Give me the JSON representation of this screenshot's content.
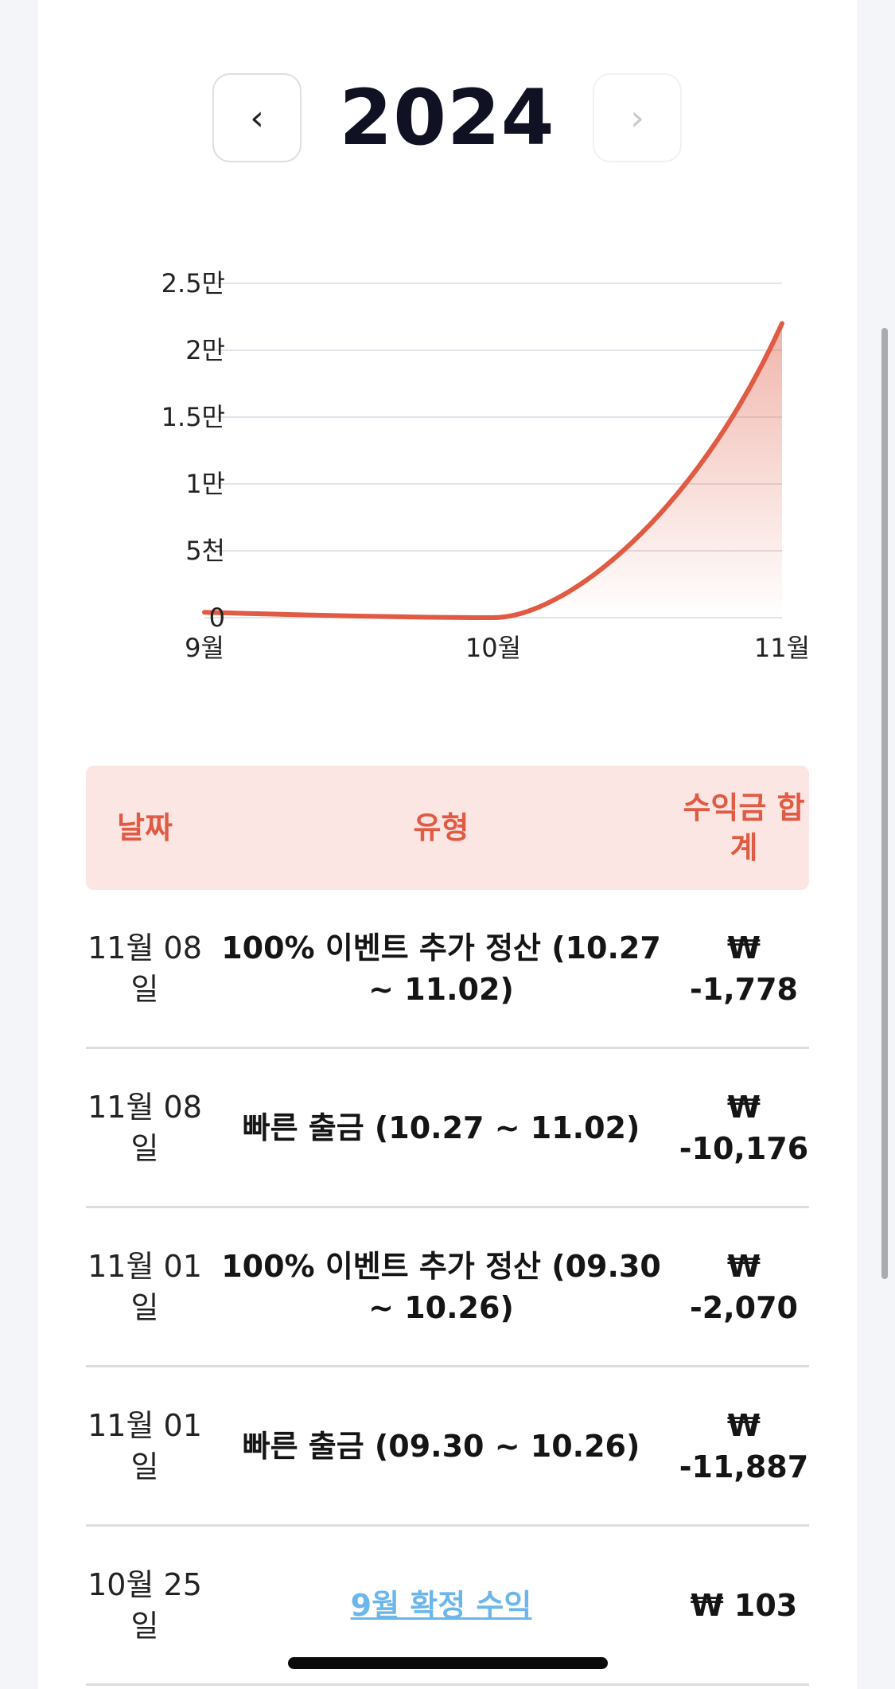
{
  "year_nav": {
    "prev_icon": "chevron-left-icon",
    "prev_glyph": "‹",
    "next_icon": "chevron-right-icon",
    "next_glyph": "›",
    "year": "2024"
  },
  "chart_data": {
    "type": "area",
    "x": [
      "9월",
      "10월",
      "11월"
    ],
    "y_ticks": [
      "0",
      "5천",
      "1만",
      "1.5만",
      "2만",
      "2.5만"
    ],
    "ylim": [
      0,
      25000
    ],
    "series": [
      {
        "values": [
          400,
          0,
          22000
        ]
      }
    ],
    "line_color": "#e05a44",
    "grid": true
  },
  "table": {
    "headers": {
      "date": "날짜",
      "type": "유형",
      "amount": "수익금 합계"
    },
    "rows": [
      {
        "date": "11월 08일",
        "type": "100% 이벤트 추가 정산 (10.27 ~ 11.02)",
        "amount": "₩ -1,778",
        "link": false
      },
      {
        "date": "11월 08일",
        "type": "빠른 출금 (10.27 ~ 11.02)",
        "amount": "₩ -10,176",
        "link": false
      },
      {
        "date": "11월 01일",
        "type": "100% 이벤트 추가 정산 (09.30 ~ 10.26)",
        "amount": "₩ -2,070",
        "link": false
      },
      {
        "date": "11월 01일",
        "type": "빠른 출금 (09.30 ~ 10.26)",
        "amount": "₩ -11,887",
        "link": false
      },
      {
        "date": "10월 25일",
        "type": "9월 확정 수익",
        "amount": "₩ 103",
        "link": true
      }
    ]
  }
}
